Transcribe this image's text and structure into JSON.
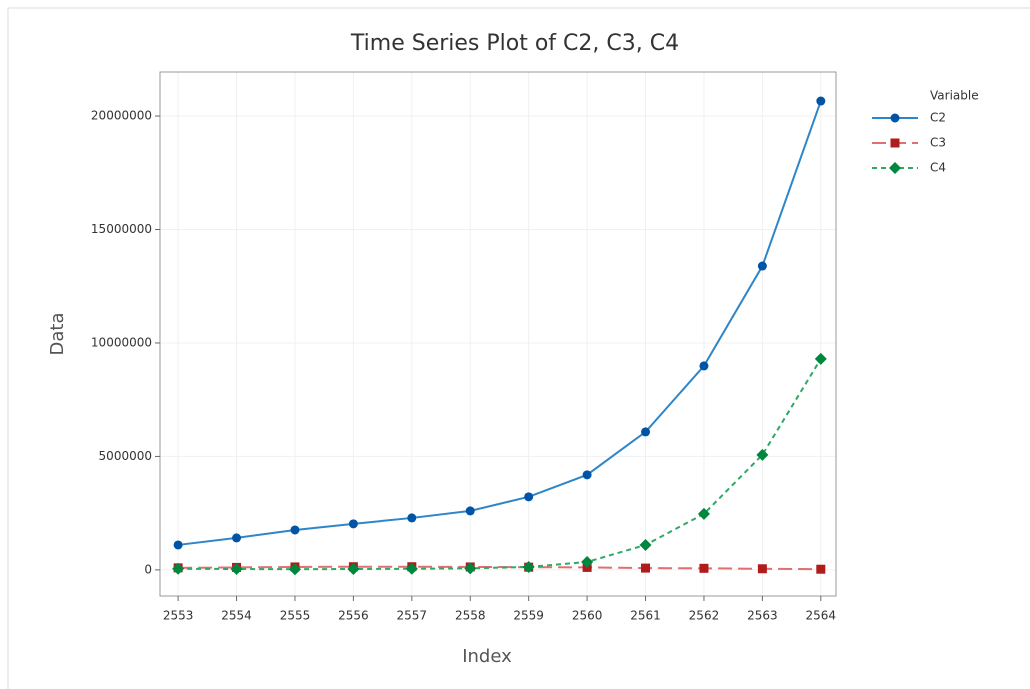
{
  "chart_data": {
    "type": "line",
    "title": "Time Series Plot of C2, C3, C4",
    "x_label": "Index",
    "y_label": "Data",
    "legend_title": "Variable",
    "legend": "right",
    "grid": true,
    "x": [
      2553,
      2554,
      2555,
      2556,
      2557,
      2558,
      2559,
      2560,
      2561,
      2562,
      2563,
      2564
    ],
    "series": [
      {
        "name": "C2",
        "color": "#0054a6",
        "line_color": "#2e86c8",
        "dash": "solid",
        "marker": "circle",
        "values": [
          1100000,
          1410000,
          1760000,
          2030000,
          2290000,
          2600000,
          3220000,
          4190000,
          6080000,
          8990000,
          13390000,
          20660000
        ]
      },
      {
        "name": "C3",
        "color": "#b01c1c",
        "line_color": "#e07070",
        "dash": "long",
        "marker": "square",
        "values": [
          90000,
          110000,
          130000,
          140000,
          140000,
          130000,
          120000,
          110000,
          80000,
          70000,
          50000,
          30000
        ]
      },
      {
        "name": "C4",
        "color": "#00873e",
        "line_color": "#2ea866",
        "dash": "short",
        "marker": "diamond",
        "values": [
          50000,
          40000,
          30000,
          40000,
          50000,
          70000,
          130000,
          350000,
          1100000,
          2470000,
          5070000,
          9300000
        ]
      }
    ],
    "xlim": [
      2552.69,
      2564.26
    ],
    "xticks": [
      2553,
      2554,
      2555,
      2556,
      2557,
      2558,
      2559,
      2560,
      2561,
      2562,
      2563,
      2564
    ],
    "ylim": [
      -1150000,
      21940000
    ],
    "yticks": [
      0,
      5000000,
      10000000,
      15000000,
      20000000
    ]
  }
}
